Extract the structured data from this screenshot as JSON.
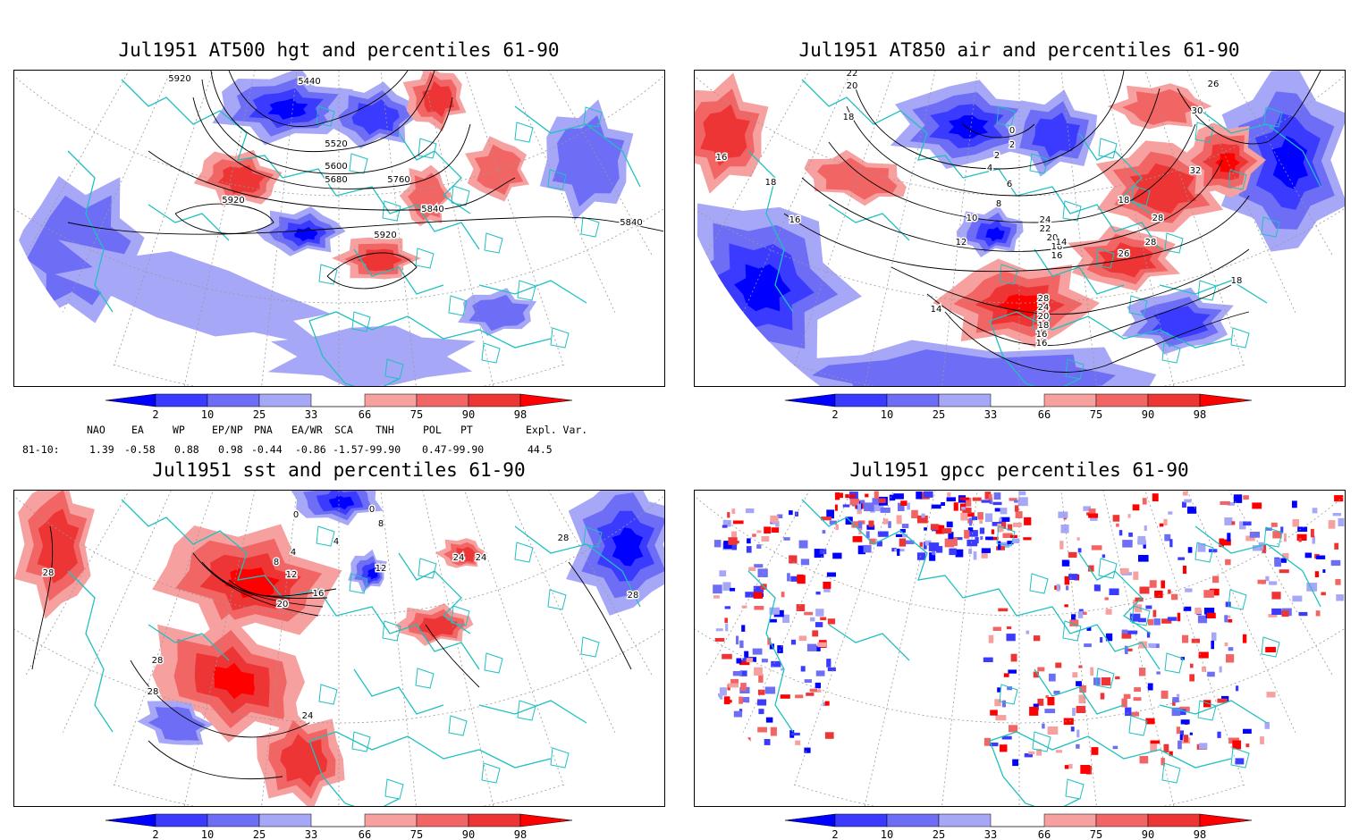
{
  "panels": [
    {
      "id": "p1",
      "title": "Jul1951 AT500 hgt and percentiles 61-90",
      "contour_labels": [
        "5920",
        "5440",
        "5520",
        "5600",
        "5680",
        "5760",
        "5920",
        "5840",
        "5920",
        "5840"
      ]
    },
    {
      "id": "p2",
      "title": "Jul1951 AT850 air and percentiles 61-90",
      "contour_labels": [
        "22",
        "20",
        "18",
        "16",
        "18",
        "16",
        "14",
        "12",
        "10",
        "8",
        "6",
        "4",
        "2",
        "0",
        "2",
        "26",
        "30",
        "32",
        "18",
        "28",
        "28",
        "26",
        "24",
        "22",
        "20",
        "18",
        "16",
        "14",
        "28",
        "24",
        "20",
        "18",
        "16",
        "16",
        "18"
      ]
    },
    {
      "id": "p3",
      "title": "Jul1951 sst and percentiles 61-90",
      "contour_labels": [
        "28",
        "28",
        "28",
        "24",
        "20",
        "16",
        "12",
        "8",
        "4",
        "0",
        "0",
        "4",
        "8",
        "12",
        "24",
        "24",
        "28",
        "28"
      ]
    },
    {
      "id": "p4",
      "title": "Jul1951 gpcc percentiles 61-90",
      "contour_labels": []
    }
  ],
  "colorbar": {
    "ticks": [
      "2",
      "10",
      "25",
      "33",
      "66",
      "75",
      "90",
      "98"
    ],
    "colors": {
      "b1": "#0000ff",
      "b2": "#3b3bff",
      "b3": "#6d6df5",
      "b4": "#a7a7f7",
      "r1": "#f7a0a0",
      "r2": "#f26565",
      "r3": "#ee3535",
      "r4": "#ff0000"
    }
  },
  "teleconnections": {
    "headers": [
      "NAO",
      "EA",
      "WP",
      "EP/NP",
      "PNA",
      "EA/WR",
      "SCA",
      "TNH",
      "POL",
      "PT",
      "Expl. Var."
    ],
    "row_label": "81-10:",
    "values": [
      "1.39",
      "-0.58",
      "0.88",
      "0.98",
      "-0.44",
      "-0.86",
      "-1.57-99.90",
      "0.47-99.90",
      "44.5"
    ]
  },
  "colors": {
    "coast": "#20c0c0",
    "contour": "#000000",
    "grid": "#999999"
  }
}
